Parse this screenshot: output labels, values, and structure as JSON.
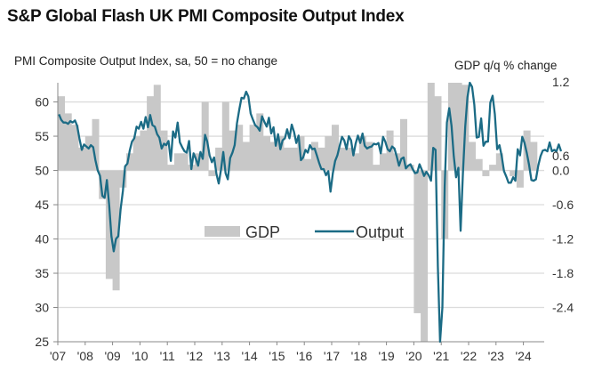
{
  "chart_data": {
    "type": "bar+line",
    "title": "S&P Global Flash UK PMI Composite Output Index",
    "ylabel_left": "PMI Composite Output Index, sa, 50 = no change",
    "ylabel_right": "GDP q/q % change",
    "xlabel": "",
    "x_ticks": [
      "'07",
      "'08",
      "'09",
      "'10",
      "'11",
      "'12",
      "'13",
      "'14",
      "'15",
      "'16",
      "'17",
      "'18",
      "'19",
      "'20",
      "'21",
      "'22",
      "'23",
      "'24"
    ],
    "y_left_ticks": [
      25,
      30,
      35,
      40,
      45,
      50,
      55,
      60
    ],
    "y_right_ticks": [
      "-2.4",
      "-1.8",
      "-1.2",
      "-0.6",
      "0.0",
      "0.6",
      "1.2"
    ],
    "ylim_left": [
      25,
      62.8
    ],
    "ylim_right": [
      -2.4,
      1.2
    ],
    "grid": true,
    "legend": [
      {
        "name": "GDP",
        "kind": "bar",
        "color": "#c8c8c8"
      },
      {
        "name": "Output",
        "kind": "line",
        "color": "#1b6b85"
      }
    ],
    "legend_position": "center",
    "series": [
      {
        "name": "GDP",
        "axis": "right",
        "frequency": "quarterly",
        "start": "2007Q1",
        "values": [
          1.3,
          1.0,
          0.8,
          0.4,
          0.6,
          0.9,
          -0.5,
          -1.9,
          -2.1,
          -0.3,
          0.3,
          0.6,
          0.7,
          1.3,
          1.5,
          0.7,
          0.1,
          0.3,
          0.3,
          0.1,
          0.3,
          1.2,
          -0.1,
          0.4,
          1.2,
          0.7,
          0.8,
          0.5,
          0.8,
          1.0,
          0.6,
          0.5,
          0.6,
          0.4,
          0.4,
          0.6,
          0.2,
          0.5,
          0.4,
          0.6,
          0.8,
          0.4,
          0.4,
          0.3,
          0.6,
          0.5,
          0.1,
          0.3,
          0.7,
          0.3,
          0.9,
          0.1,
          -2.5,
          -19.0,
          16.0,
          1.3,
          -1.2,
          6.6,
          1.8,
          1.5,
          0.5,
          0.2,
          -0.1,
          0.1,
          0.3,
          0.0,
          -0.1,
          -0.3,
          0.7,
          0.5
        ],
        "note": "Q2 2020 and Q3 2020 bars are clipped by the axis range"
      },
      {
        "name": "Output",
        "axis": "left",
        "frequency": "monthly",
        "start": "2007-01",
        "values": [
          58.2,
          57.4,
          57.0,
          57.0,
          56.8,
          57.2,
          57.0,
          57.3,
          56.5,
          54.6,
          53.0,
          53.8,
          53.5,
          53.2,
          53.7,
          53.4,
          51.5,
          50.0,
          49.2,
          46.3,
          46.0,
          48.6,
          44.9,
          40.4,
          38.2,
          40.0,
          40.4,
          44.3,
          47.0,
          50.6,
          51.0,
          52.9,
          54.2,
          54.7,
          56.4,
          56.1,
          57.1,
          56.1,
          57.8,
          56.3,
          58.1,
          56.6,
          56.4,
          55.3,
          54.8,
          53.2,
          53.9,
          53.7,
          54.3,
          51.4,
          55.7,
          54.8,
          57.0,
          54.1,
          53.4,
          52.8,
          52.6,
          54.3,
          50.2,
          52.5,
          51.7,
          50.7,
          52.7,
          51.7,
          55.2,
          54.2,
          52.2,
          51.2,
          51.9,
          49.5,
          48.1,
          50.1,
          52.7,
          49.6,
          48.7,
          51.8,
          52.6,
          53.7,
          56.9,
          58.9,
          60.6,
          60.5,
          61.5,
          60.8,
          58.3,
          57.4,
          56.6,
          56.3,
          55.8,
          57.9,
          57.1,
          56.4,
          57.7,
          55.4,
          56.3,
          53.6,
          55.3,
          53.1,
          54.4,
          54.7,
          56.0,
          54.7,
          56.7,
          55.6,
          54.0,
          55.1,
          51.5,
          51.9,
          53.0,
          52.6,
          53.7,
          53.1,
          53.2,
          52.2,
          51.1,
          50.2,
          50.2,
          49.3,
          49.9,
          46.9,
          49.6,
          51.4,
          52.2,
          53.6,
          54.9,
          54.4,
          53.1,
          55.0,
          54.4,
          52.2,
          53.9,
          55.1,
          54.0,
          55.4,
          53.6,
          53.2,
          53.4,
          53.5,
          53.9,
          53.8,
          54.0,
          52.5,
          54.9,
          54.2,
          53.1,
          52.8,
          53.5,
          53.2,
          52.0,
          50.7,
          51.7,
          51.9,
          50.3,
          50.7,
          50.9,
          50.2,
          49.6,
          49.7,
          50.9,
          50.1,
          49.2,
          49.8,
          49.3,
          48.5,
          53.3,
          53.0,
          36.0,
          13.8,
          30.0,
          47.7,
          57.0,
          59.1,
          56.5,
          52.1,
          49.0,
          50.4,
          41.2,
          49.6,
          56.4,
          60.7,
          62.9,
          62.2,
          59.6,
          54.8,
          54.9,
          57.6,
          53.6,
          54.2,
          54.2,
          59.9,
          60.9,
          58.2,
          53.1,
          53.7,
          52.1,
          49.9,
          49.1,
          48.2,
          48.2,
          49.0,
          48.5,
          53.1,
          52.2,
          54.9,
          54.0,
          52.5,
          50.8,
          48.6,
          48.5,
          48.7,
          50.7,
          52.1,
          52.9,
          53.0,
          52.8,
          54.1,
          52.8,
          53.0,
          52.8,
          53.8,
          52.8
        ]
      }
    ]
  }
}
